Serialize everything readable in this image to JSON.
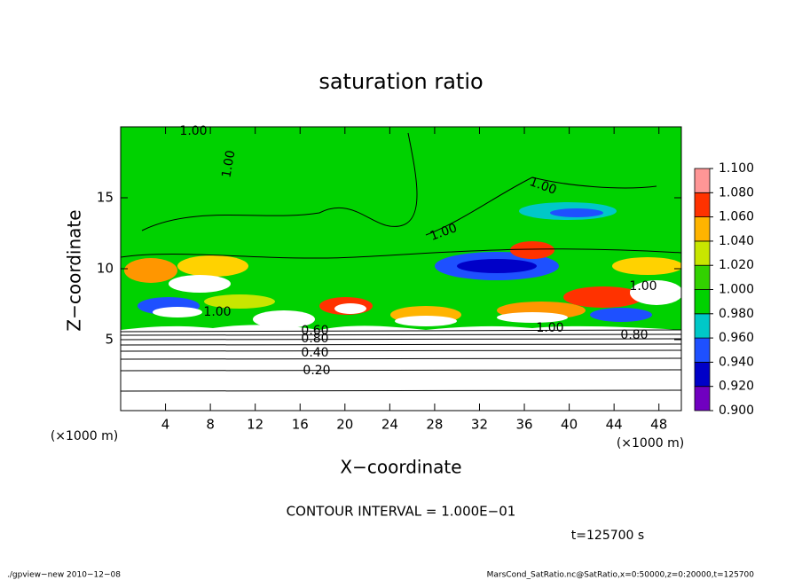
{
  "chart_data": {
    "type": "contour",
    "title": "saturation ratio",
    "x_label": "X−coordinate",
    "y_label": "Z−coordinate",
    "x_unit_label": "(×1000 m)",
    "x_unit_label_right": "(×1000 m)",
    "xlim": [
      0,
      50
    ],
    "xticks": [
      4,
      8,
      12,
      16,
      20,
      24,
      28,
      32,
      36,
      40,
      44,
      48
    ],
    "ylim": [
      0,
      20
    ],
    "yticks": [
      5,
      10,
      15
    ],
    "colorbar": {
      "levels": [
        {
          "value": 0.9,
          "label": "0.900"
        },
        {
          "value": 0.92,
          "label": "0.920"
        },
        {
          "value": 0.94,
          "label": "0.940"
        },
        {
          "value": 0.96,
          "label": "0.960"
        },
        {
          "value": 0.98,
          "label": "0.980"
        },
        {
          "value": 1.0,
          "label": "1.000"
        },
        {
          "value": 1.02,
          "label": "1.020"
        },
        {
          "value": 1.04,
          "label": "1.040"
        },
        {
          "value": 1.06,
          "label": "1.060"
        },
        {
          "value": 1.08,
          "label": "1.080"
        },
        {
          "value": 1.1,
          "label": "1.100"
        }
      ],
      "colors": [
        "#7000c0",
        "#0000c8",
        "#1e50ff",
        "#00c8c8",
        "#00d200",
        "#32d200",
        "#c8e600",
        "#ffb400",
        "#ff3200",
        "#ff9696"
      ]
    },
    "contour_labels": [
      "1.00",
      "1.00",
      "1.00",
      "1.00",
      "1.00",
      "1.00",
      "1.00",
      "0.80",
      "0.80",
      "0.60",
      "0.40",
      "0.20"
    ],
    "contour_interval": "CONTOUR INTERVAL = 1.000E−01",
    "time_label": "t=125700 s",
    "footer_left": "./gpview−new   2010−12−08",
    "footer_right": "MarsCond_SatRatio.nc@SatRatio,x=0:50000,z=0:20000,t=125700"
  }
}
